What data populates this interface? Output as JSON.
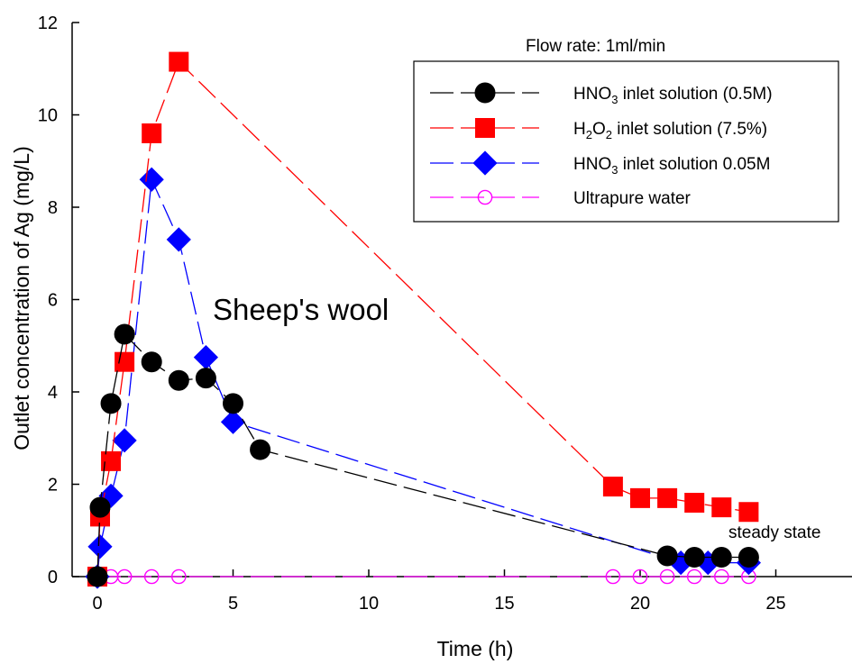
{
  "chart_data": {
    "type": "line",
    "xlabel": "Time (h)",
    "ylabel": "Outlet concentration of Ag (mg/L)",
    "xlim": [
      -1,
      28
    ],
    "ylim": [
      0,
      12
    ],
    "x_ticks": [
      0,
      5,
      10,
      15,
      20,
      25
    ],
    "y_ticks": [
      0,
      2,
      4,
      6,
      8,
      10,
      12
    ],
    "legend_title": "Flow rate: 1ml/min",
    "legend_position": "top-right",
    "annotations": [
      "Sheep's wool",
      "steady state"
    ],
    "series": [
      {
        "name": "HNO3 inlet solution (0.5M)",
        "legend": {
          "pre": "HNO",
          "sub": "3",
          "post": " inlet solution (0.5M)"
        },
        "color": "#000000",
        "marker": "circle-filled",
        "points": [
          [
            0,
            0
          ],
          [
            0.1,
            1.5
          ],
          [
            0.5,
            3.75
          ],
          [
            1,
            5.25
          ],
          [
            2,
            4.65
          ],
          [
            3,
            4.25
          ],
          [
            4,
            4.3
          ],
          [
            5,
            3.75
          ],
          [
            6,
            2.75
          ],
          [
            21,
            0.45
          ],
          [
            22,
            0.42
          ],
          [
            23,
            0.42
          ],
          [
            24,
            0.42
          ]
        ]
      },
      {
        "name": "H2O2 inlet solution (7.5%)",
        "legend": {
          "pre": "H",
          "sub": "2",
          "mid": "O",
          "sub2": "2",
          "post": " inlet solution (7.5%)"
        },
        "color": "#ff0000",
        "marker": "square-filled",
        "points": [
          [
            0,
            0
          ],
          [
            0.1,
            1.3
          ],
          [
            0.5,
            2.5
          ],
          [
            1,
            4.65
          ],
          [
            2,
            9.6
          ],
          [
            3,
            11.15
          ],
          [
            19,
            1.95
          ],
          [
            20,
            1.7
          ],
          [
            21,
            1.7
          ],
          [
            22,
            1.6
          ],
          [
            23,
            1.5
          ],
          [
            24,
            1.4
          ]
        ]
      },
      {
        "name": "HNO3 inlet solution 0.05M",
        "legend": {
          "pre": "HNO",
          "sub": "3",
          "post": " inlet solution 0.05M"
        },
        "color": "#0000ff",
        "marker": "diamond-filled",
        "points": [
          [
            0,
            0
          ],
          [
            0.1,
            0.65
          ],
          [
            0.5,
            1.75
          ],
          [
            1,
            2.95
          ],
          [
            2,
            8.6
          ],
          [
            3,
            7.3
          ],
          [
            4,
            4.75
          ],
          [
            5,
            3.35
          ],
          [
            21.5,
            0.3
          ],
          [
            22.5,
            0.3
          ],
          [
            24,
            0.3
          ]
        ]
      },
      {
        "name": "Ultrapure water",
        "legend": {
          "pre": "Ultrapure water"
        },
        "color": "#ff00ff",
        "marker": "circle-open",
        "points": [
          [
            0,
            0
          ],
          [
            0.1,
            0
          ],
          [
            0.5,
            0
          ],
          [
            1,
            0
          ],
          [
            2,
            0
          ],
          [
            3,
            0
          ],
          [
            19,
            0
          ],
          [
            20,
            0
          ],
          [
            21,
            0
          ],
          [
            22,
            0
          ],
          [
            23,
            0
          ],
          [
            24,
            0
          ]
        ]
      }
    ]
  }
}
